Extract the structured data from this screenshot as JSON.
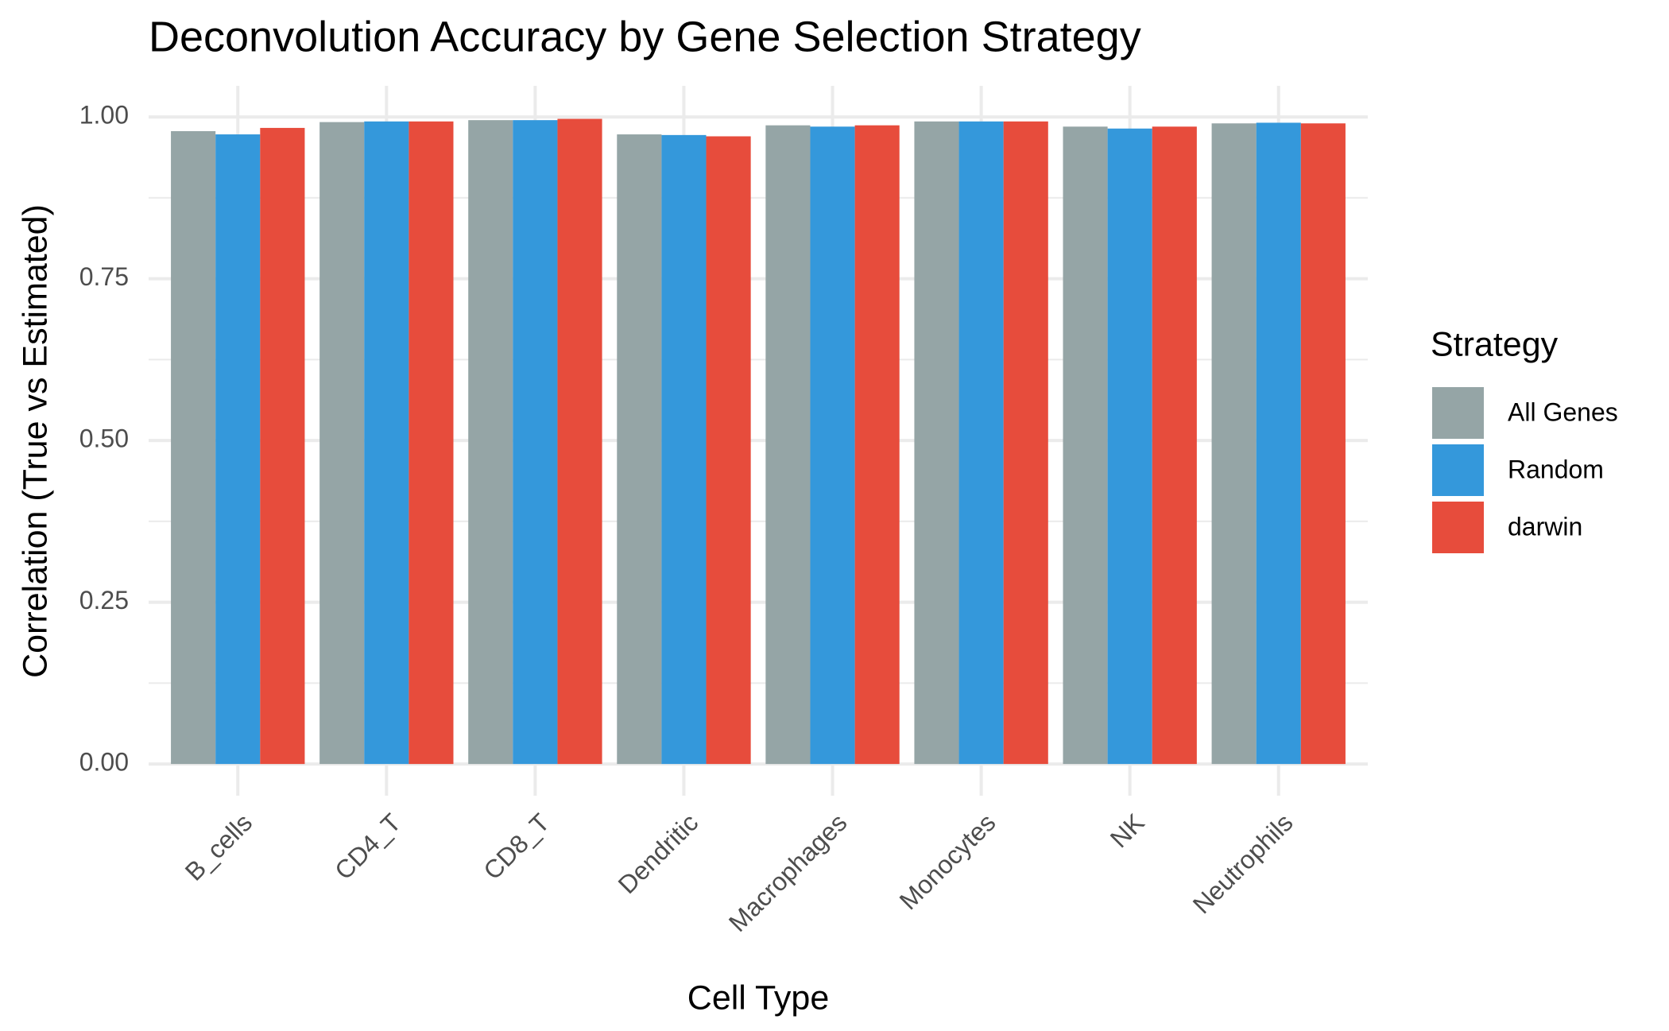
{
  "chart_data": {
    "type": "bar",
    "title": "Deconvolution Accuracy by Gene Selection Strategy",
    "x_label": "Cell Type",
    "y_label": "Correlation (True vs Estimated)",
    "legend_title": "Strategy",
    "legend_position": "right",
    "categories": [
      "B_cells",
      "CD4_T",
      "CD8_T",
      "Dendritic",
      "Macrophages",
      "Monocytes",
      "NK",
      "Neutrophils"
    ],
    "series": [
      {
        "name": "All Genes",
        "color": "#95a5a6",
        "values": [
          0.978,
          0.992,
          0.995,
          0.973,
          0.987,
          0.993,
          0.985,
          0.99
        ]
      },
      {
        "name": "Random",
        "color": "#3498db",
        "values": [
          0.973,
          0.993,
          0.995,
          0.972,
          0.985,
          0.993,
          0.982,
          0.991
        ]
      },
      {
        "name": "darwin",
        "color": "#e74c3c",
        "values": [
          0.983,
          0.993,
          0.997,
          0.97,
          0.987,
          0.993,
          0.985,
          0.99
        ]
      }
    ],
    "ylim": [
      -0.049,
      1.048
    ],
    "yticks": [
      {
        "value": 0,
        "label": "0.00"
      },
      {
        "value": 0.25,
        "label": "0.25"
      },
      {
        "value": 0.5,
        "label": "0.50"
      },
      {
        "value": 0.75,
        "label": "0.75"
      },
      {
        "value": 1,
        "label": "1.00"
      }
    ],
    "minor_yticks": [
      0.125,
      0.375,
      0.625,
      0.875
    ],
    "grid": true
  }
}
